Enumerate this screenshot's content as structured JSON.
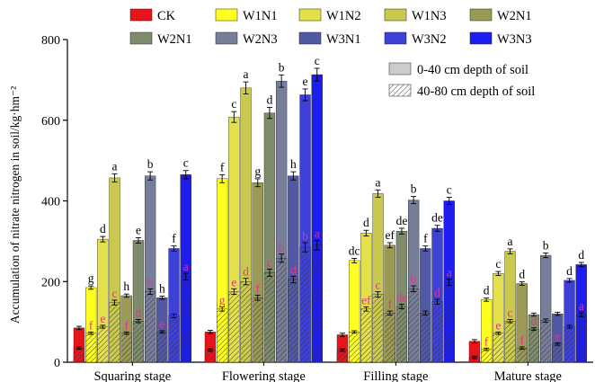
{
  "chart_data": {
    "type": "bar",
    "ylabel": "Accumulation of nitrate nitrogen in soil/kg·hm⁻²",
    "ylim": [
      0,
      800
    ],
    "yticks": [
      "0",
      "200",
      "400",
      "600",
      "800"
    ],
    "grid": false,
    "categories": [
      "Squaring stage",
      "Flowering stage",
      "Filling stage",
      "Mature stage"
    ],
    "treatments": [
      "CK",
      "W1N1",
      "W1N2",
      "W1N3",
      "W2N1",
      "W2N1",
      "W2N3",
      "W3N1",
      "W3N2",
      "W3N3"
    ],
    "treatment_colors": [
      "#e8141c",
      "#ffff22",
      "#e3e04a",
      "#c9c94f",
      "#9a9a55",
      "#7f8c6c",
      "#777e99",
      "#5158a4",
      "#3d41d6",
      "#1d1df0"
    ],
    "depth_legend": [
      "0-40 cm depth of soil",
      "40-80 cm depth of soil"
    ],
    "legend_position": "top",
    "series": [
      {
        "name": "0-40 cm depth of soil",
        "values": [
          [
            85,
            185,
            305,
            457,
            165,
            302,
            462,
            160,
            282,
            465
          ],
          [
            75,
            455,
            608,
            680,
            445,
            618,
            697,
            462,
            663,
            713
          ],
          [
            68,
            252,
            320,
            418,
            290,
            325,
            402,
            282,
            332,
            400
          ],
          [
            52,
            155,
            220,
            275,
            195,
            118,
            265,
            120,
            203,
            242
          ]
        ],
        "letters": [
          [
            "",
            "g",
            "d",
            "a",
            "h",
            "e",
            "b",
            "h",
            "f",
            "c"
          ],
          [
            "",
            "f",
            "c",
            "a",
            "g",
            "d",
            "b",
            "h",
            "e",
            "c"
          ],
          [
            "",
            "dc",
            "d",
            "a",
            "ef",
            "de",
            "b",
            "f",
            "de",
            "c"
          ],
          [
            "",
            "d",
            "c",
            "a",
            "d",
            "",
            "b",
            "",
            "d",
            "d"
          ]
        ]
      },
      {
        "name": "40-80 cm depth of soil",
        "values": [
          [
            35,
            72,
            88,
            148,
            72,
            102,
            175,
            75,
            115,
            212
          ],
          [
            30,
            132,
            175,
            200,
            160,
            222,
            258,
            205,
            285,
            290
          ],
          [
            30,
            75,
            132,
            168,
            122,
            138,
            182,
            122,
            150,
            198
          ],
          [
            12,
            32,
            72,
            102,
            35,
            82,
            103,
            45,
            88,
            118
          ]
        ],
        "letters": [
          [
            "",
            "f",
            "e",
            "c",
            "f",
            "d",
            "b",
            "e",
            "",
            "a"
          ],
          [
            "",
            "g",
            "e",
            "d",
            "f",
            "c",
            "b",
            "d",
            "b",
            "a"
          ],
          [
            "",
            "",
            "ef",
            "c",
            "f",
            "de",
            "b",
            "",
            "d",
            "a"
          ],
          [
            "",
            "f",
            "e",
            "c",
            "f",
            "d",
            "",
            "e",
            "",
            "a"
          ]
        ]
      }
    ]
  }
}
